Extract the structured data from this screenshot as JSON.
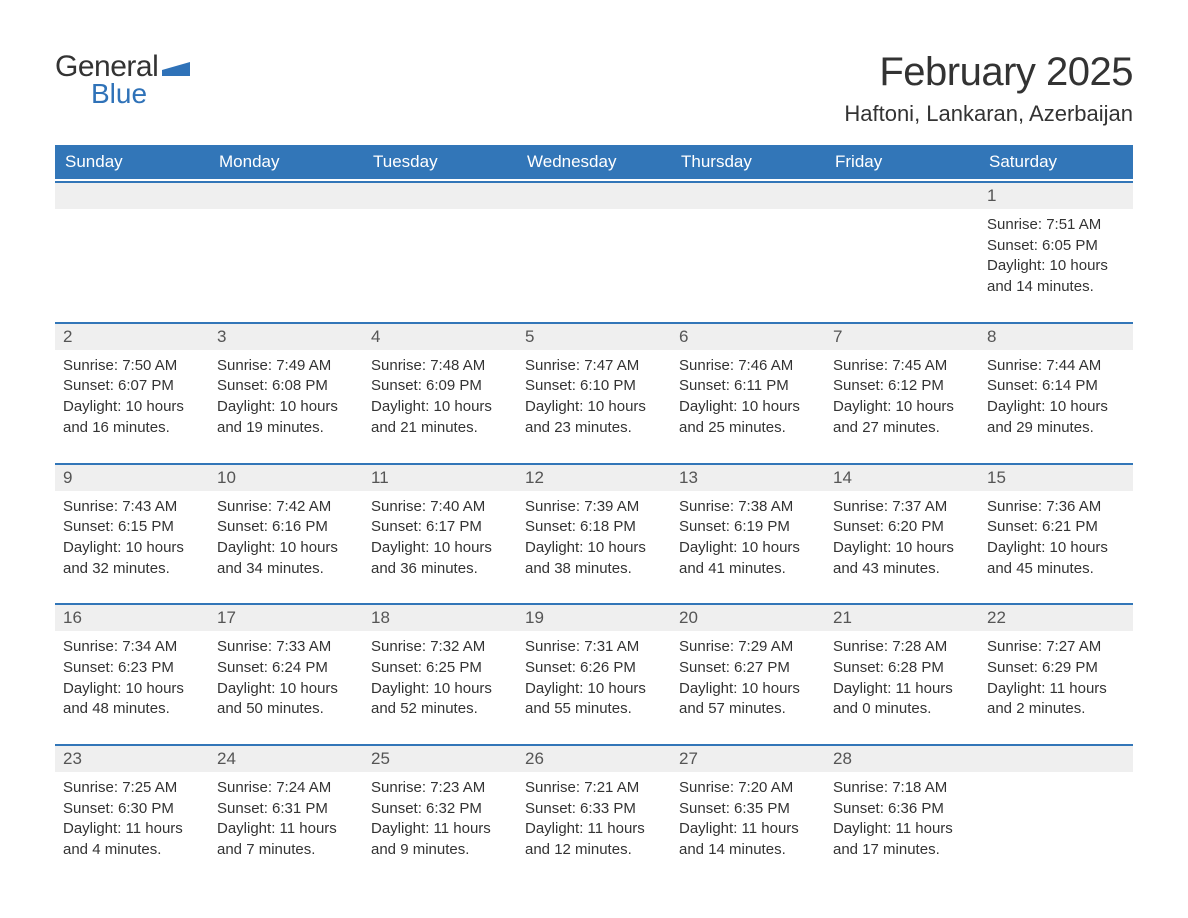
{
  "colors": {
    "header_bg": "#3276b8",
    "header_text": "#ffffff",
    "row_rule": "#3276b8",
    "daynum_bg": "#efefef",
    "body_text": "#333333",
    "logo_blue": "#2f72b8",
    "background": "#ffffff"
  },
  "typography": {
    "title_fontsize": 40,
    "location_fontsize": 22,
    "header_fontsize": 17,
    "daynum_fontsize": 17,
    "body_fontsize": 15,
    "font_family": "Segoe UI"
  },
  "logo": {
    "text1": "General",
    "text2": "Blue"
  },
  "title": "February 2025",
  "location": "Haftoni, Lankaran, Azerbaijan",
  "day_headers": [
    "Sunday",
    "Monday",
    "Tuesday",
    "Wednesday",
    "Thursday",
    "Friday",
    "Saturday"
  ],
  "weeks": [
    [
      {
        "num": "",
        "sunrise": "",
        "sunset": "",
        "daylight": ""
      },
      {
        "num": "",
        "sunrise": "",
        "sunset": "",
        "daylight": ""
      },
      {
        "num": "",
        "sunrise": "",
        "sunset": "",
        "daylight": ""
      },
      {
        "num": "",
        "sunrise": "",
        "sunset": "",
        "daylight": ""
      },
      {
        "num": "",
        "sunrise": "",
        "sunset": "",
        "daylight": ""
      },
      {
        "num": "",
        "sunrise": "",
        "sunset": "",
        "daylight": ""
      },
      {
        "num": "1",
        "sunrise": "Sunrise: 7:51 AM",
        "sunset": "Sunset: 6:05 PM",
        "daylight": "Daylight: 10 hours and 14 minutes."
      }
    ],
    [
      {
        "num": "2",
        "sunrise": "Sunrise: 7:50 AM",
        "sunset": "Sunset: 6:07 PM",
        "daylight": "Daylight: 10 hours and 16 minutes."
      },
      {
        "num": "3",
        "sunrise": "Sunrise: 7:49 AM",
        "sunset": "Sunset: 6:08 PM",
        "daylight": "Daylight: 10 hours and 19 minutes."
      },
      {
        "num": "4",
        "sunrise": "Sunrise: 7:48 AM",
        "sunset": "Sunset: 6:09 PM",
        "daylight": "Daylight: 10 hours and 21 minutes."
      },
      {
        "num": "5",
        "sunrise": "Sunrise: 7:47 AM",
        "sunset": "Sunset: 6:10 PM",
        "daylight": "Daylight: 10 hours and 23 minutes."
      },
      {
        "num": "6",
        "sunrise": "Sunrise: 7:46 AM",
        "sunset": "Sunset: 6:11 PM",
        "daylight": "Daylight: 10 hours and 25 minutes."
      },
      {
        "num": "7",
        "sunrise": "Sunrise: 7:45 AM",
        "sunset": "Sunset: 6:12 PM",
        "daylight": "Daylight: 10 hours and 27 minutes."
      },
      {
        "num": "8",
        "sunrise": "Sunrise: 7:44 AM",
        "sunset": "Sunset: 6:14 PM",
        "daylight": "Daylight: 10 hours and 29 minutes."
      }
    ],
    [
      {
        "num": "9",
        "sunrise": "Sunrise: 7:43 AM",
        "sunset": "Sunset: 6:15 PM",
        "daylight": "Daylight: 10 hours and 32 minutes."
      },
      {
        "num": "10",
        "sunrise": "Sunrise: 7:42 AM",
        "sunset": "Sunset: 6:16 PM",
        "daylight": "Daylight: 10 hours and 34 minutes."
      },
      {
        "num": "11",
        "sunrise": "Sunrise: 7:40 AM",
        "sunset": "Sunset: 6:17 PM",
        "daylight": "Daylight: 10 hours and 36 minutes."
      },
      {
        "num": "12",
        "sunrise": "Sunrise: 7:39 AM",
        "sunset": "Sunset: 6:18 PM",
        "daylight": "Daylight: 10 hours and 38 minutes."
      },
      {
        "num": "13",
        "sunrise": "Sunrise: 7:38 AM",
        "sunset": "Sunset: 6:19 PM",
        "daylight": "Daylight: 10 hours and 41 minutes."
      },
      {
        "num": "14",
        "sunrise": "Sunrise: 7:37 AM",
        "sunset": "Sunset: 6:20 PM",
        "daylight": "Daylight: 10 hours and 43 minutes."
      },
      {
        "num": "15",
        "sunrise": "Sunrise: 7:36 AM",
        "sunset": "Sunset: 6:21 PM",
        "daylight": "Daylight: 10 hours and 45 minutes."
      }
    ],
    [
      {
        "num": "16",
        "sunrise": "Sunrise: 7:34 AM",
        "sunset": "Sunset: 6:23 PM",
        "daylight": "Daylight: 10 hours and 48 minutes."
      },
      {
        "num": "17",
        "sunrise": "Sunrise: 7:33 AM",
        "sunset": "Sunset: 6:24 PM",
        "daylight": "Daylight: 10 hours and 50 minutes."
      },
      {
        "num": "18",
        "sunrise": "Sunrise: 7:32 AM",
        "sunset": "Sunset: 6:25 PM",
        "daylight": "Daylight: 10 hours and 52 minutes."
      },
      {
        "num": "19",
        "sunrise": "Sunrise: 7:31 AM",
        "sunset": "Sunset: 6:26 PM",
        "daylight": "Daylight: 10 hours and 55 minutes."
      },
      {
        "num": "20",
        "sunrise": "Sunrise: 7:29 AM",
        "sunset": "Sunset: 6:27 PM",
        "daylight": "Daylight: 10 hours and 57 minutes."
      },
      {
        "num": "21",
        "sunrise": "Sunrise: 7:28 AM",
        "sunset": "Sunset: 6:28 PM",
        "daylight": "Daylight: 11 hours and 0 minutes."
      },
      {
        "num": "22",
        "sunrise": "Sunrise: 7:27 AM",
        "sunset": "Sunset: 6:29 PM",
        "daylight": "Daylight: 11 hours and 2 minutes."
      }
    ],
    [
      {
        "num": "23",
        "sunrise": "Sunrise: 7:25 AM",
        "sunset": "Sunset: 6:30 PM",
        "daylight": "Daylight: 11 hours and 4 minutes."
      },
      {
        "num": "24",
        "sunrise": "Sunrise: 7:24 AM",
        "sunset": "Sunset: 6:31 PM",
        "daylight": "Daylight: 11 hours and 7 minutes."
      },
      {
        "num": "25",
        "sunrise": "Sunrise: 7:23 AM",
        "sunset": "Sunset: 6:32 PM",
        "daylight": "Daylight: 11 hours and 9 minutes."
      },
      {
        "num": "26",
        "sunrise": "Sunrise: 7:21 AM",
        "sunset": "Sunset: 6:33 PM",
        "daylight": "Daylight: 11 hours and 12 minutes."
      },
      {
        "num": "27",
        "sunrise": "Sunrise: 7:20 AM",
        "sunset": "Sunset: 6:35 PM",
        "daylight": "Daylight: 11 hours and 14 minutes."
      },
      {
        "num": "28",
        "sunrise": "Sunrise: 7:18 AM",
        "sunset": "Sunset: 6:36 PM",
        "daylight": "Daylight: 11 hours and 17 minutes."
      },
      {
        "num": "",
        "sunrise": "",
        "sunset": "",
        "daylight": ""
      }
    ]
  ]
}
